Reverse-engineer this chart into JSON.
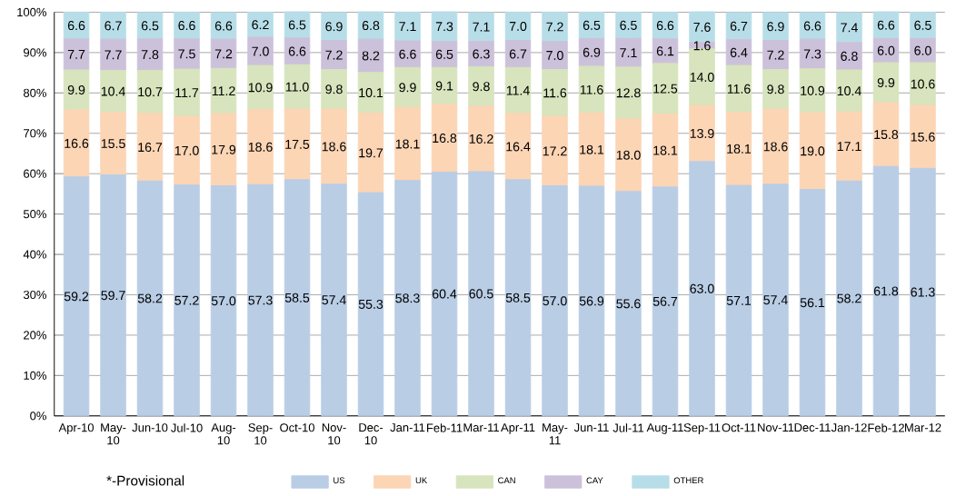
{
  "chart_data": {
    "type": "bar",
    "stacked": true,
    "categories": [
      "Apr-10",
      "May-10",
      "Jun-10",
      "Jul-10",
      "Aug-10",
      "Sep-10",
      "Oct-10",
      "Nov-10",
      "Dec-10",
      "Jan-11",
      "Feb-11",
      "Mar-11",
      "Apr-11",
      "May-11",
      "Jun-11",
      "Jul-11",
      "Aug-11",
      "Sep-11",
      "Oct-11",
      "Nov-11",
      "Dec-11",
      "Jan-12",
      "Feb-12",
      "Mar-12"
    ],
    "series": [
      {
        "name": "US",
        "color": "#b9cde5",
        "values": [
          59.2,
          59.7,
          58.2,
          57.2,
          57.0,
          57.3,
          58.5,
          57.4,
          55.3,
          58.3,
          60.4,
          60.5,
          58.5,
          57.0,
          56.9,
          55.6,
          56.7,
          63.0,
          57.1,
          57.4,
          56.1,
          58.2,
          61.8,
          61.3
        ],
        "value_labels": [
          "59.2",
          "59.7",
          "58.2",
          "57.2",
          "57.0",
          "57.3",
          "58.5",
          "57.4",
          "55.3",
          "58.3",
          "60.4",
          "60.5",
          "58.5",
          "57.0",
          "56.9",
          "55.6",
          "56.7",
          "63.0",
          "57.1",
          "57.4",
          "56.1",
          "58.2",
          "61.8",
          "61.3"
        ]
      },
      {
        "name": "UK",
        "color": "#fcd5b5",
        "values": [
          16.6,
          15.5,
          16.7,
          17.0,
          17.9,
          18.6,
          17.5,
          18.6,
          19.7,
          18.1,
          16.8,
          16.2,
          16.4,
          17.2,
          18.1,
          18.0,
          18.1,
          13.9,
          18.1,
          18.6,
          19.0,
          17.1,
          15.8,
          15.6
        ],
        "value_labels": [
          "16.6",
          "15.5",
          "16.7",
          "17.0",
          "17.9",
          "18.6",
          "17.5",
          "18.6",
          "19.7",
          "18.1",
          "16.8",
          "16.2",
          "16.4",
          "17.2",
          "18.1",
          "18.0",
          "18.1",
          "13.9",
          "18.1",
          "18.6",
          "19.0",
          "17.1",
          "15.8",
          "15.6"
        ]
      },
      {
        "name": "CAN",
        "color": "#d7e4bd",
        "values": [
          9.9,
          10.4,
          10.7,
          11.7,
          11.2,
          10.9,
          11.0,
          9.8,
          10.1,
          9.9,
          9.1,
          9.8,
          11.4,
          11.6,
          11.6,
          12.8,
          12.5,
          14.0,
          11.6,
          9.8,
          10.9,
          10.4,
          9.9,
          10.6
        ],
        "value_labels": [
          "9.9",
          "10.4",
          "10.7",
          "11.7",
          "11.2",
          "10.9",
          "11.0",
          "9.8",
          "10.1",
          "9.9",
          "9.1",
          "9.8",
          "11.4",
          "11.6",
          "11.6",
          "12.8",
          "12.5",
          "14.0",
          "11.6",
          "9.8",
          "10.9",
          "10.4",
          "9.9",
          "10.6"
        ]
      },
      {
        "name": "CAY",
        "color": "#ccc1da",
        "values": [
          7.7,
          7.7,
          7.8,
          7.5,
          7.2,
          7.0,
          6.6,
          7.2,
          8.2,
          6.6,
          6.5,
          6.3,
          6.7,
          7.0,
          6.9,
          7.1,
          6.1,
          1.6,
          6.4,
          7.2,
          7.3,
          6.8,
          6.0,
          6.0
        ],
        "value_labels": [
          "7.7",
          "7.7",
          "7.8",
          "7.5",
          "7.2",
          "7.0",
          "6.6",
          "7.2",
          "8.2",
          "6.6",
          "6.5",
          "6.3",
          "6.7",
          "7.0",
          "6.9",
          "7.1",
          "6.1",
          "1.6",
          "6.4",
          "7.2",
          "7.3",
          "6.8",
          "6.0",
          "6.0"
        ]
      },
      {
        "name": "OTHER",
        "color": "#b7dee8",
        "values": [
          6.6,
          6.7,
          6.5,
          6.6,
          6.6,
          6.2,
          6.5,
          6.9,
          6.8,
          7.1,
          7.3,
          7.1,
          7.0,
          7.2,
          6.5,
          6.5,
          6.6,
          7.6,
          6.7,
          6.9,
          6.6,
          7.4,
          6.6,
          6.5
        ],
        "value_labels": [
          "6.6",
          "6.7",
          "6.5",
          "6.6",
          "6.6",
          "6.2",
          "6.5",
          "6.9",
          "6.8",
          "7.1",
          "7.3",
          "7.1",
          "7.0",
          "7.2",
          "6.5",
          "6.5",
          "6.6",
          "7.6",
          "6.7",
          "6.9",
          "6.6",
          "7.4",
          "6.6",
          "6.5"
        ]
      }
    ],
    "ylim": [
      0,
      100
    ],
    "yticks": [
      {
        "value": 0,
        "label": "0%"
      },
      {
        "value": 10,
        "label": "10%"
      },
      {
        "value": 20,
        "label": "20%"
      },
      {
        "value": 30,
        "label": "30%"
      },
      {
        "value": 40,
        "label": "40%"
      },
      {
        "value": 50,
        "label": "50%"
      },
      {
        "value": 60,
        "label": "60%"
      },
      {
        "value": 70,
        "label": "70%"
      },
      {
        "value": 80,
        "label": "80%"
      },
      {
        "value": 90,
        "label": "90%"
      },
      {
        "value": 100,
        "label": "100%"
      }
    ],
    "grid": "y",
    "legend": "bottom",
    "annotations": [
      "*-Provisional"
    ]
  }
}
